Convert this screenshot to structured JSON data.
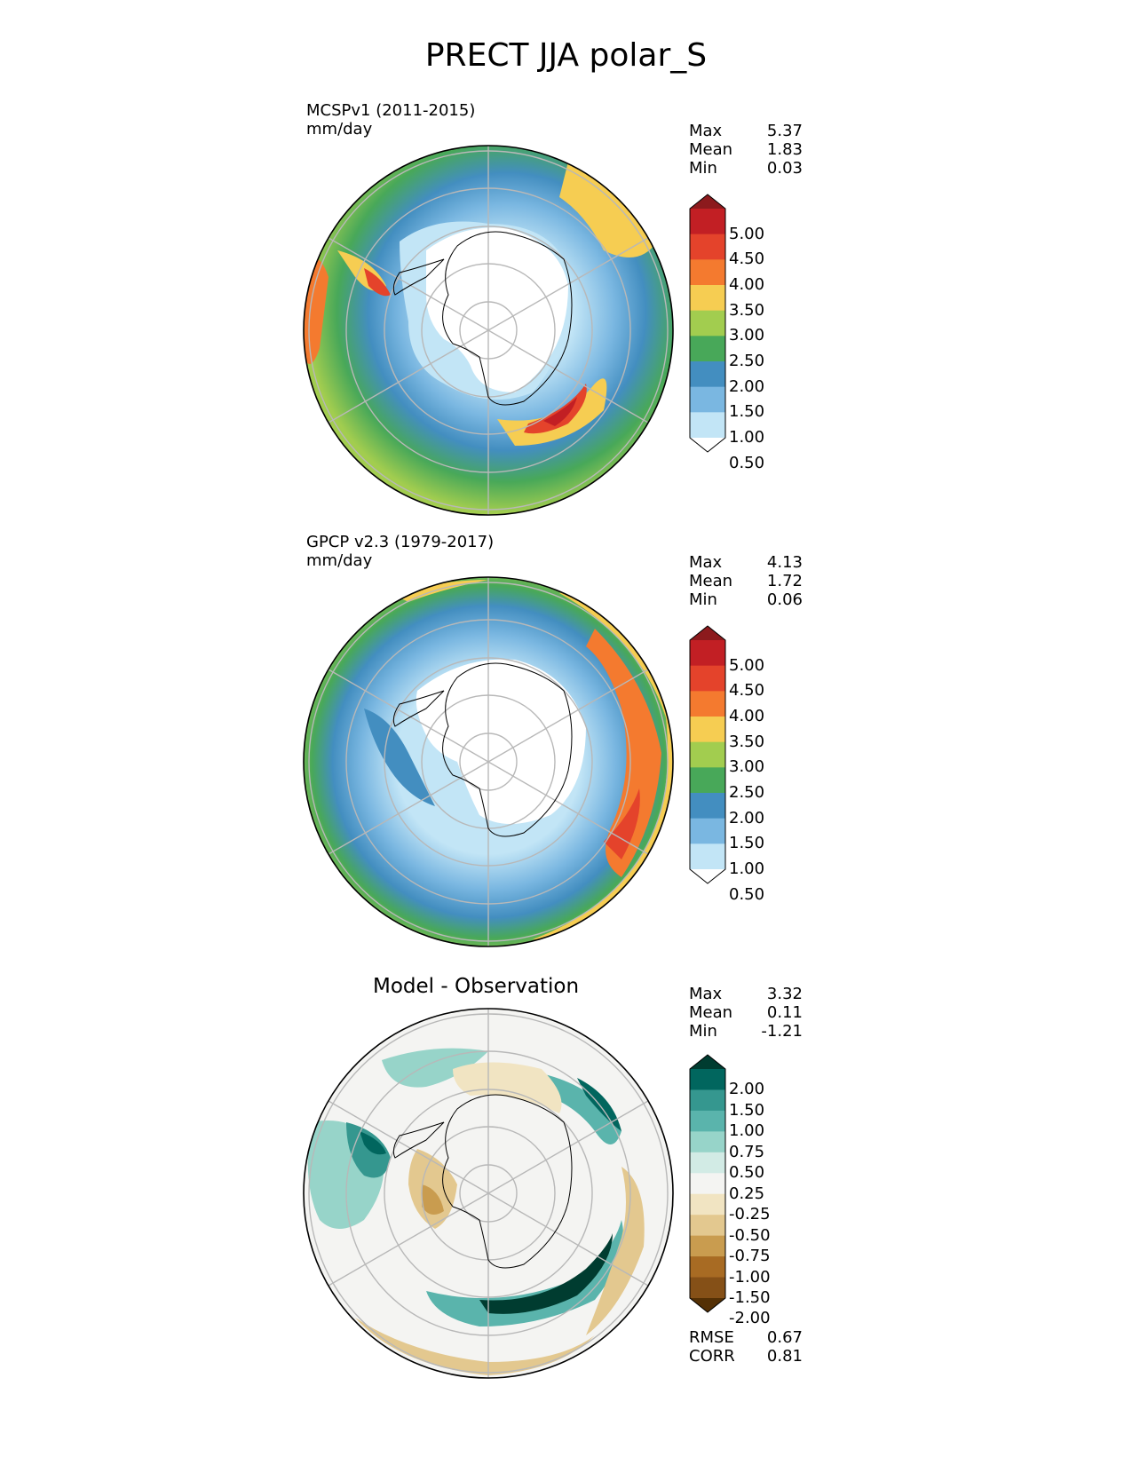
{
  "figure": {
    "title": "PRECT JJA polar_S"
  },
  "panels": [
    {
      "id": "model",
      "name": "MCSPv1 (2011-2015)",
      "units": "mm/day",
      "stats": [
        {
          "label": "Max",
          "value": "5.37"
        },
        {
          "label": "Mean",
          "value": "1.83"
        },
        {
          "label": "Min",
          "value": "0.03"
        }
      ]
    },
    {
      "id": "obs",
      "name": "GPCP v2.3 (1979-2017)",
      "units": "mm/day",
      "stats": [
        {
          "label": "Max",
          "value": "4.13"
        },
        {
          "label": "Mean",
          "value": "1.72"
        },
        {
          "label": "Min",
          "value": "0.06"
        }
      ]
    },
    {
      "id": "diff",
      "name": "Model - Observation",
      "stats": [
        {
          "label": "Max",
          "value": "3.32"
        },
        {
          "label": "Mean",
          "value": "0.11"
        },
        {
          "label": "Min",
          "value": "-1.21"
        }
      ],
      "metrics": [
        {
          "label": "RMSE",
          "value": "0.67"
        },
        {
          "label": "CORR",
          "value": "0.81"
        }
      ]
    }
  ],
  "colorbar_precip": {
    "levels": [
      "5.00",
      "4.50",
      "4.00",
      "3.50",
      "3.00",
      "2.50",
      "2.00",
      "1.50",
      "1.00",
      "0.50"
    ],
    "colors": [
      "#8c1a1d",
      "#c21f24",
      "#e4432b",
      "#f47a2f",
      "#f6cd52",
      "#a2cd4f",
      "#48a859",
      "#438ec0",
      "#7ab7e1",
      "#c2e5f6",
      "#ffffff"
    ]
  },
  "colorbar_diff": {
    "levels": [
      "2.00",
      "1.50",
      "1.00",
      "0.75",
      "0.50",
      "0.25",
      "-0.25",
      "-0.50",
      "-0.75",
      "-1.00",
      "-1.50",
      "-2.00"
    ],
    "colors": [
      "#003c30",
      "#01665e",
      "#35978f",
      "#5ab4ac",
      "#97d4c9",
      "#d2ebe5",
      "#f4f4f2",
      "#f1e4c2",
      "#e3c88f",
      "#c99c4f",
      "#a86b23",
      "#855017",
      "#543005"
    ]
  }
}
